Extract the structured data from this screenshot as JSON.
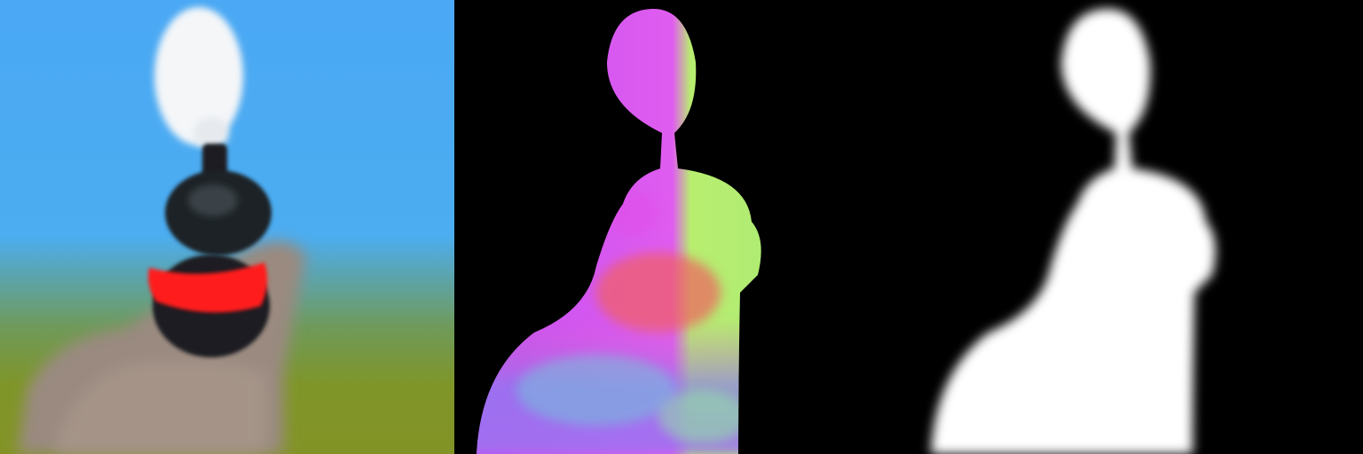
{
  "panels": [
    {
      "id": "rgb",
      "subject": "steam-locomotive-front-view",
      "colors": {
        "sky_top": "#4aa8f4",
        "sky_mid": "#4cadf0",
        "ground_blend": "#6f9a5a",
        "ground": "#7f9528",
        "steam": "#f4f6f8",
        "boiler": "#1e2428",
        "buffer_beam": "#ff1a1a",
        "smoke_cloud": "#9a8a80"
      }
    },
    {
      "id": "normal-map",
      "colors": {
        "background": "#000000",
        "left_side": "#e05cf0",
        "right_side": "#b8ee70",
        "center_red": "#f06060",
        "lower_blue": "#8a7cf0",
        "lower_cyan": "#70c8d8"
      }
    },
    {
      "id": "alpha-mask",
      "colors": {
        "background": "#000000",
        "foreground": "#ffffff"
      }
    }
  ]
}
